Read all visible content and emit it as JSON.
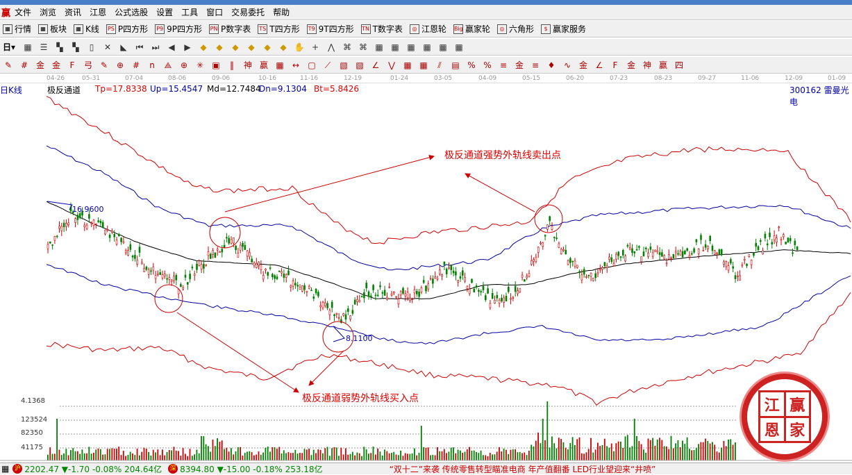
{
  "menu": {
    "logo": "赢",
    "items": [
      "文件",
      "浏览",
      "资讯",
      "江恩",
      "公式选股",
      "设置",
      "工具",
      "窗口",
      "交易委托",
      "帮助"
    ]
  },
  "toolbar1": [
    {
      "icon": "PS",
      "label": "P四方形"
    },
    {
      "icon": "P9",
      "label": "9P四方形"
    },
    {
      "icon": "PN",
      "label": "P数字表"
    },
    {
      "icon": "TS",
      "label": "T四方形"
    },
    {
      "icon": "T9",
      "label": "9T四方形"
    },
    {
      "icon": "TN",
      "label": "T数字表"
    },
    {
      "icon": "◎",
      "label": "江恩轮"
    },
    {
      "icon": "Big",
      "label": "赢家轮"
    },
    {
      "icon": "◎",
      "label": "六角形"
    },
    {
      "icon": "$",
      "label": "赢家服务"
    }
  ],
  "toolbar1_pre": [
    {
      "label": "行情"
    },
    {
      "label": "板块"
    },
    {
      "label": "K线"
    }
  ],
  "toolbar2": {
    "period": "日"
  },
  "dates": [
    "04-26",
    "05-31",
    "07-04",
    "08-06",
    "09-06",
    "10-16",
    "11-16",
    "12-19",
    "01-24",
    "03-05",
    "04-09",
    "05-15",
    "06-20",
    "07-23",
    "08-23",
    "09-27",
    "11-06",
    "12-09",
    "01-09"
  ],
  "chart": {
    "period_label": "日K线",
    "indicator": "极反通道",
    "tp": "Tp=17.8338",
    "up": "Up=15.4547",
    "md": "Md=12.7484",
    "dn": "Dn=9.1304",
    "bt": "Bt=5.8426",
    "stock": "300162  雷曼光电",
    "high_label": "16.9600",
    "low_label": "8.1100",
    "colors": {
      "tp": "#d00000",
      "up": "#0000a0",
      "md": "#000000",
      "up_candle": "#d00000",
      "down_candle": "#008000"
    }
  },
  "annotations": {
    "sell": "极反通道强势外轨线卖出点",
    "buy": "极反通道弱势外轨线买入点"
  },
  "volume": {
    "ticks": [
      "4.1368",
      "123524",
      "82350",
      "41175"
    ]
  },
  "seal": [
    "江",
    "赢",
    "恩",
    "家"
  ],
  "status": {
    "sh_label": "沪",
    "sh": "2202.47 ▼-1.70 -0.08% 204.64亿",
    "sz_label": "深",
    "sz": "8394.80 ▼-15.00 -0.18% 253.18亿",
    "news": "“双十二”来袭 传统零售转型瞄准电商    年产值翻番 LED行业望迎来“井喷”"
  }
}
